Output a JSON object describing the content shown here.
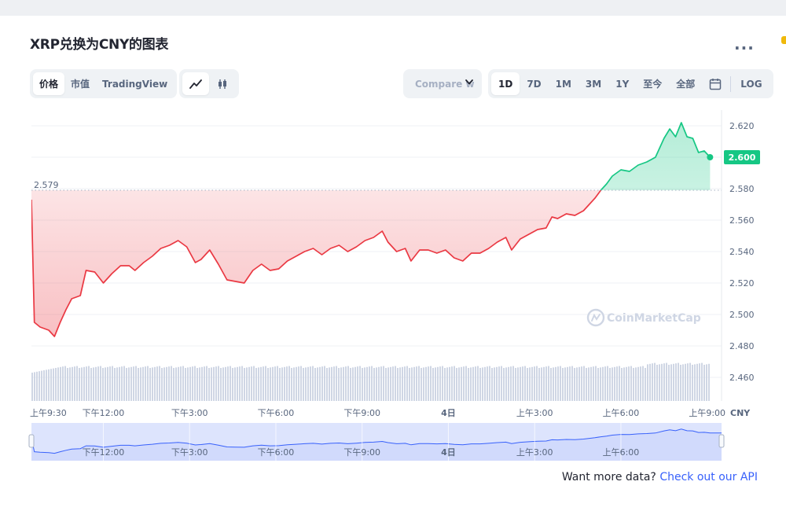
{
  "header": {
    "title": "XRP兑换为CNY的图表",
    "more_label": "..."
  },
  "view_tabs": [
    {
      "label": "价格",
      "active": true
    },
    {
      "label": "市值",
      "active": false
    },
    {
      "label": "TradingView",
      "active": false
    }
  ],
  "type_tabs": [
    {
      "icon": "line-chart-icon",
      "active": true
    },
    {
      "icon": "candlestick-icon",
      "active": false
    }
  ],
  "compare": {
    "label": "Compare w"
  },
  "range_tabs": [
    {
      "label": "1D",
      "active": true
    },
    {
      "label": "7D",
      "active": false
    },
    {
      "label": "1M",
      "active": false
    },
    {
      "label": "3M",
      "active": false
    },
    {
      "label": "1Y",
      "active": false
    },
    {
      "label": "至今",
      "active": false
    },
    {
      "label": "全部",
      "active": false
    }
  ],
  "calendar_icon": "calendar-icon",
  "log_label": "LOG",
  "colors": {
    "up": "#16c784",
    "down": "#ea3943",
    "grid": "#eff2f5",
    "volume": "#cfd6e4",
    "nav_fill": "#dde4fd",
    "nav_line": "#3861fb"
  },
  "chart_data": {
    "type": "area",
    "currency": "CNY",
    "ylim": [
      2.445,
      2.63
    ],
    "yticks": [
      2.46,
      2.48,
      2.5,
      2.52,
      2.54,
      2.56,
      2.58,
      2.6,
      2.62
    ],
    "ytick_labels": [
      "2.460",
      "2.480",
      "2.500",
      "2.520",
      "2.540",
      "2.560",
      "2.580",
      "2.600",
      "2.620"
    ],
    "reference_price": 2.579,
    "reference_label": "2.579",
    "current_price": 2.6,
    "current_label": "2.600",
    "x_range_hours": [
      0,
      24
    ],
    "xticks": [
      {
        "h": 0,
        "label": "上午9:30"
      },
      {
        "h": 2.5,
        "label": "下午12:00"
      },
      {
        "h": 5.5,
        "label": "下午3:00"
      },
      {
        "h": 8.5,
        "label": "下午6:00"
      },
      {
        "h": 11.5,
        "label": "下午9:00"
      },
      {
        "h": 14.5,
        "label": "4日",
        "bold": true
      },
      {
        "h": 17.5,
        "label": "上午3:00"
      },
      {
        "h": 20.5,
        "label": "上午6:00"
      },
      {
        "h": 23.5,
        "label": "上午9:00"
      }
    ],
    "nav_ticks": [
      {
        "h": 2.5,
        "label": "下午12:00"
      },
      {
        "h": 5.5,
        "label": "下午3:00"
      },
      {
        "h": 8.5,
        "label": "下午6:00"
      },
      {
        "h": 11.5,
        "label": "下午9:00"
      },
      {
        "h": 14.5,
        "label": "4日",
        "bold": true
      },
      {
        "h": 17.5,
        "label": "上午3:00"
      },
      {
        "h": 20.5,
        "label": "上午6:00"
      }
    ],
    "series": [
      {
        "points": [
          [
            0,
            2.573
          ],
          [
            0.1,
            2.495
          ],
          [
            0.3,
            2.492
          ],
          [
            0.6,
            2.49
          ],
          [
            0.8,
            2.486
          ],
          [
            1.0,
            2.495
          ],
          [
            1.2,
            2.503
          ],
          [
            1.4,
            2.51
          ],
          [
            1.7,
            2.512
          ],
          [
            1.9,
            2.528
          ],
          [
            2.2,
            2.527
          ],
          [
            2.5,
            2.52
          ],
          [
            2.8,
            2.526
          ],
          [
            3.1,
            2.531
          ],
          [
            3.4,
            2.531
          ],
          [
            3.6,
            2.528
          ],
          [
            3.9,
            2.533
          ],
          [
            4.2,
            2.537
          ],
          [
            4.5,
            2.542
          ],
          [
            4.8,
            2.544
          ],
          [
            5.1,
            2.547
          ],
          [
            5.4,
            2.543
          ],
          [
            5.7,
            2.533
          ],
          [
            5.9,
            2.535
          ],
          [
            6.2,
            2.541
          ],
          [
            6.5,
            2.532
          ],
          [
            6.8,
            2.522
          ],
          [
            7.1,
            2.521
          ],
          [
            7.4,
            2.52
          ],
          [
            7.7,
            2.528
          ],
          [
            8.0,
            2.532
          ],
          [
            8.3,
            2.528
          ],
          [
            8.6,
            2.529
          ],
          [
            8.9,
            2.534
          ],
          [
            9.2,
            2.537
          ],
          [
            9.5,
            2.54
          ],
          [
            9.8,
            2.542
          ],
          [
            10.1,
            2.538
          ],
          [
            10.4,
            2.542
          ],
          [
            10.7,
            2.544
          ],
          [
            11.0,
            2.54
          ],
          [
            11.3,
            2.543
          ],
          [
            11.6,
            2.547
          ],
          [
            11.9,
            2.549
          ],
          [
            12.2,
            2.553
          ],
          [
            12.4,
            2.546
          ],
          [
            12.7,
            2.54
          ],
          [
            13.0,
            2.542
          ],
          [
            13.2,
            2.534
          ],
          [
            13.5,
            2.541
          ],
          [
            13.8,
            2.541
          ],
          [
            14.1,
            2.539
          ],
          [
            14.4,
            2.541
          ],
          [
            14.7,
            2.536
          ],
          [
            15.0,
            2.534
          ],
          [
            15.3,
            2.539
          ],
          [
            15.6,
            2.539
          ],
          [
            15.9,
            2.542
          ],
          [
            16.2,
            2.546
          ],
          [
            16.5,
            2.549
          ],
          [
            16.7,
            2.541
          ],
          [
            17.0,
            2.548
          ],
          [
            17.3,
            2.551
          ],
          [
            17.6,
            2.554
          ],
          [
            17.9,
            2.555
          ],
          [
            18.1,
            2.562
          ],
          [
            18.3,
            2.561
          ],
          [
            18.6,
            2.564
          ],
          [
            18.9,
            2.563
          ],
          [
            19.2,
            2.566
          ],
          [
            19.4,
            2.57
          ],
          [
            19.6,
            2.574
          ],
          [
            19.8,
            2.579
          ],
          [
            20.0,
            2.583
          ],
          [
            20.2,
            2.588
          ],
          [
            20.5,
            2.592
          ],
          [
            20.8,
            2.591
          ],
          [
            21.1,
            2.595
          ],
          [
            21.4,
            2.597
          ],
          [
            21.7,
            2.6
          ],
          [
            22.0,
            2.612
          ],
          [
            22.2,
            2.618
          ],
          [
            22.4,
            2.613
          ],
          [
            22.6,
            2.622
          ],
          [
            22.8,
            2.613
          ],
          [
            23.0,
            2.612
          ],
          [
            23.2,
            2.603
          ],
          [
            23.4,
            2.604
          ],
          [
            23.6,
            2.6
          ]
        ]
      }
    ],
    "watermark": "CoinMarketCap"
  },
  "footer": {
    "prefix": "Want more data?",
    "link": "Check out our API"
  }
}
